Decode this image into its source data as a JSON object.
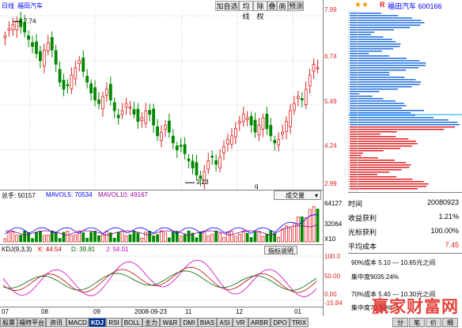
{
  "header": {
    "period": "日线",
    "stock_name": "福田汽车",
    "right_title": "福田汽车 600166",
    "stars": "★★",
    "r_mark": "R"
  },
  "toolbar": [
    "加自选",
    "均线",
    "除权",
    "叠",
    "画",
    "预测"
  ],
  "price_axis": [
    "7.99",
    "6.74",
    "5.49",
    "4.24",
    "2.99"
  ],
  "annotations": {
    "high": "7.74",
    "low": "3.23",
    "q": "q"
  },
  "volume": {
    "label_hand": "总手: 50157",
    "label_mavol5": "MAVOL5: 70534",
    "label_mavol10": "MAVOL10: 49167",
    "dropdown": "成交量",
    "axis": [
      "64127",
      "32064",
      "X10"
    ]
  },
  "kdj": {
    "label": "KDJ(9,3,3)",
    "k": "K: 44.54",
    "d": "D: 39.81",
    "j": "J: 54.01",
    "button": "指标说明",
    "axis": [
      "100.0",
      "50.00",
      "0.00",
      "-15.84"
    ]
  },
  "date_axis": [
    "07",
    "08",
    "09",
    "2008-09-23",
    "11",
    "12",
    "01"
  ],
  "info": {
    "time_label": "时间",
    "time_value": "20080923",
    "profit_label": "收益获利",
    "profit_value": "1.21%",
    "lose_label": "光标获利",
    "lose_value": "100.00%",
    "avg_label": "平均成本",
    "avg_value": "7.45",
    "cost90": "90%成本  5.10 — 10.65元之间",
    "conc90": "集中度9035.24%",
    "cost70": "70%成本  5.40 — 10.30元之间",
    "conc70": "集中度70 31%"
  },
  "tabs": [
    "股票",
    "福特平台",
    "资讯",
    "MACD",
    "KDJ",
    "RSI",
    "BOLL",
    "主力",
    "W&R",
    "DMI",
    "BIAS",
    "ASI",
    "VR",
    "ARBR",
    "DPO",
    "TRIX"
  ],
  "right_tabs": [
    "分",
    "笔",
    "价",
    "细"
  ],
  "watermark": "赢家财富网",
  "chart_data": {
    "type": "candlestick",
    "price_range": [
      2.99,
      7.99
    ],
    "high": 7.74,
    "low": 3.23,
    "closes": [
      7.3,
      7.5,
      7.6,
      7.7,
      7.55,
      7.4,
      7.2,
      7.0,
      6.8,
      6.6,
      6.9,
      7.1,
      6.9,
      6.5,
      6.0,
      5.8,
      5.9,
      6.2,
      6.4,
      6.6,
      6.3,
      6.0,
      5.7,
      5.5,
      5.4,
      5.6,
      5.8,
      5.5,
      5.2,
      5.0,
      5.2,
      5.4,
      5.3,
      5.1,
      4.9,
      5.0,
      5.2,
      5.1,
      4.8,
      4.5,
      4.6,
      4.8,
      4.6,
      4.3,
      4.1,
      4.2,
      4.0,
      3.8,
      3.6,
      3.4,
      3.3,
      3.5,
      3.8,
      3.9,
      3.7,
      3.9,
      4.2,
      4.4,
      4.5,
      4.7,
      4.9,
      5.1,
      5.0,
      4.8,
      4.6,
      4.8,
      5.0,
      4.7,
      4.5,
      4.3,
      4.4,
      4.6,
      4.9,
      5.2,
      5.4,
      5.6,
      5.5,
      5.8,
      6.2,
      6.5,
      6.4
    ],
    "volume_axis_max": 64127
  }
}
